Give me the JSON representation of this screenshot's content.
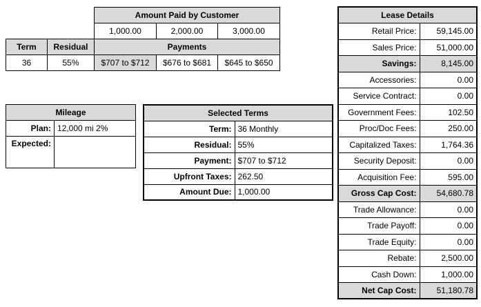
{
  "amount_paid": {
    "title": "Amount Paid by Customer",
    "amounts": [
      "1,000.00",
      "2,000.00",
      "3,000.00"
    ],
    "term_label": "Term",
    "residual_label": "Residual",
    "payments_label": "Payments",
    "term": "36",
    "residual": "55%",
    "payments": [
      "$707 to $712",
      "$676 to $681",
      "$645 to $650"
    ]
  },
  "mileage": {
    "title": "Mileage",
    "plan_label": "Plan:",
    "plan_value": "12,000 mi 2%",
    "expected_label": "Expected:",
    "expected_value": ""
  },
  "selected_terms": {
    "title": "Selected Terms",
    "rows": [
      {
        "label": "Term:",
        "value": "36 Monthly"
      },
      {
        "label": "Residual:",
        "value": "55%"
      },
      {
        "label": "Payment:",
        "value": "$707 to $712"
      },
      {
        "label": "Upfront Taxes:",
        "value": "262.50"
      },
      {
        "label": "Amount Due:",
        "value": "1,000.00"
      }
    ]
  },
  "lease_details": {
    "title": "Lease Details",
    "rows": [
      {
        "label": "Retail Price:",
        "value": "59,145.00"
      },
      {
        "label": "Sales Price:",
        "value": "51,000.00"
      },
      {
        "label": "Savings:",
        "value": "8,145.00"
      },
      {
        "label": "Accessories:",
        "value": "0.00"
      },
      {
        "label": "Service Contract:",
        "value": "0.00"
      },
      {
        "label": "Government Fees:",
        "value": "102.50"
      },
      {
        "label": "Proc/Doc Fees:",
        "value": "250.00"
      },
      {
        "label": "Capitalized Taxes:",
        "value": "1,764.36"
      },
      {
        "label": "Security Deposit:",
        "value": "0.00"
      },
      {
        "label": "Acquisition Fee:",
        "value": "595.00"
      },
      {
        "label": "Gross Cap Cost:",
        "value": "54,680.78"
      },
      {
        "label": "Trade Allowance:",
        "value": "0.00"
      },
      {
        "label": "Trade Payoff:",
        "value": "0.00"
      },
      {
        "label": "Trade Equity:",
        "value": "0.00"
      },
      {
        "label": "Rebate:",
        "value": "2,500.00"
      },
      {
        "label": "Cash Down:",
        "value": "1,000.00"
      },
      {
        "label": "Net Cap Cost:",
        "value": "51,180.78"
      }
    ]
  }
}
